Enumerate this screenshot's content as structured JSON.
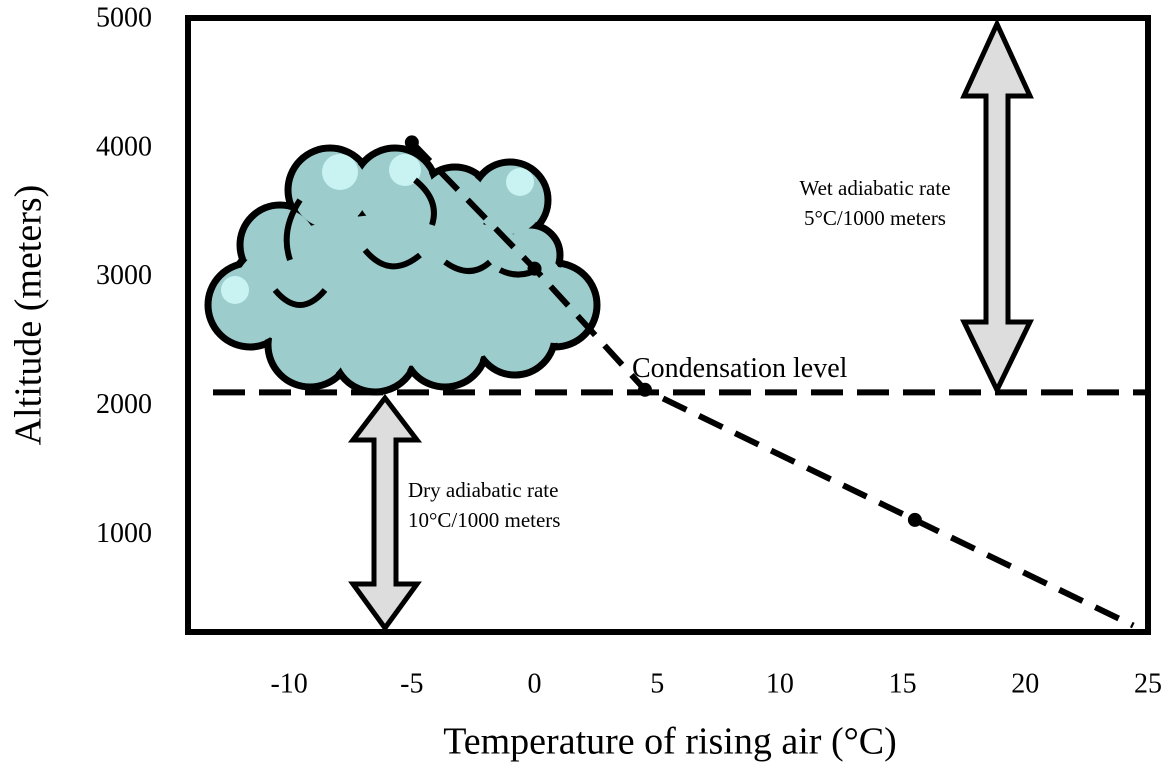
{
  "chart_data": {
    "type": "line",
    "xlabel": "Temperature of rising air (°C)",
    "ylabel": "Altitude (meters)",
    "series": [
      {
        "x": [
          -5,
          0,
          4.5,
          15.5,
          24.4
        ],
        "values": [
          4050,
          3070,
          2130,
          1120,
          300
        ],
        "markers": [
          true,
          true,
          true,
          true,
          false
        ],
        "color": "#000000"
      }
    ],
    "xlim": [
      -14,
      25
    ],
    "xticks": [
      -10,
      -5,
      0,
      5,
      10,
      15,
      20,
      25
    ],
    "ylim": [
      250,
      5000
    ],
    "yticks": [
      1000,
      2000,
      3000,
      4000,
      5000
    ],
    "hline": {
      "y": 2110,
      "label": "Condensation level"
    },
    "annotations": [
      {
        "lines": [
          "Dry adiabatic rate",
          "10°C/1000 meters"
        ]
      },
      {
        "lines": [
          "Wet adiabatic rate",
          "5°C/1000 meters"
        ]
      }
    ]
  }
}
